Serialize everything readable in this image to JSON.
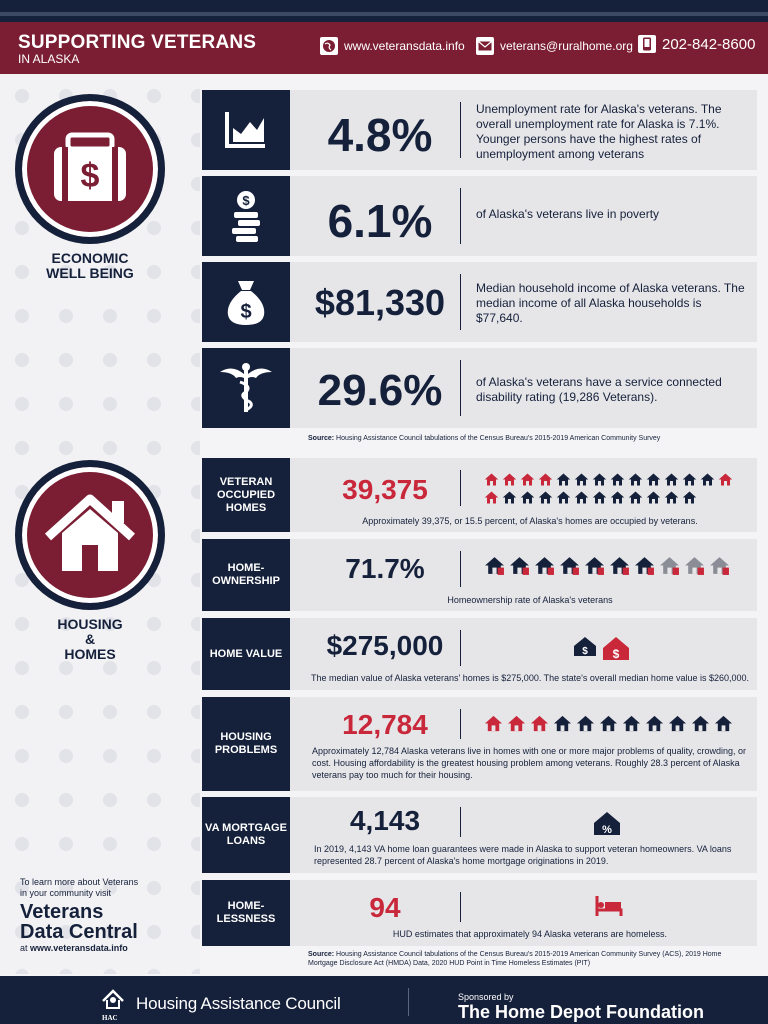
{
  "header": {
    "title": "SUPPORTING VETERANS",
    "subtitle": "IN ALASKA",
    "website": "www.veteransdata.info",
    "email": "veterans@ruralhome.org",
    "phone": "202-842-8600"
  },
  "economic": {
    "label_line1": "ECONOMIC",
    "label_line2": "WELL BEING",
    "stats": [
      {
        "value": "4.8%",
        "icon": "chart-icon",
        "desc": "Unemployment rate for Alaska's veterans. The overall unemployment rate for Alaska is 7.1%. Younger persons have the highest rates of unemployment among veterans"
      },
      {
        "value": "6.1%",
        "icon": "coins-icon",
        "desc": "of Alaska's veterans live in poverty"
      },
      {
        "value": "$81,330",
        "icon": "money-bag-icon",
        "desc": "Median household income of Alaska veterans. The median income of all Alaska households is $77,640."
      },
      {
        "value": "29.6%",
        "icon": "caduceus-icon",
        "desc": "of Alaska's veterans have a service connected disability rating (19,286 Veterans)."
      }
    ],
    "source_label": "Source:",
    "source_text": "Housing Assistance Council tabulations of the Census Bureau's 2015-2019 American Community Survey"
  },
  "housing": {
    "label_line1": "HOUSING",
    "label_line2": "&",
    "label_line3": "HOMES",
    "rows": [
      {
        "label": "VETERAN OCCUPIED HOMES",
        "value": "39,375",
        "color": "#c8283a",
        "desc": "Approximately 39,375, or 15.5 percent, of Alaska's homes are occupied by veterans."
      },
      {
        "label": "HOME-OWNERSHIP",
        "value": "71.7%",
        "color": "#15203a",
        "desc": "Homeownership rate of Alaska's veterans"
      },
      {
        "label": "HOME VALUE",
        "value": "$275,000",
        "color": "#15203a",
        "desc": "The median value of Alaska veterans' homes is $275,000. The state's overall median home value is $260,000."
      },
      {
        "label": "HOUSING PROBLEMS",
        "value": "12,784",
        "color": "#c8283a",
        "desc": "Approximately 12,784 Alaska veterans live in homes with one or more major problems of quality, crowding, or cost. Housing affordability is the greatest housing problem among veterans. Roughly 28.3 percent of Alaska veterans pay too much for their housing."
      },
      {
        "label": "VA MORTGAGE LOANS",
        "value": "4,143",
        "color": "#15203a",
        "desc": "In 2019, 4,143 VA home loan guarantees were made in Alaska to support veteran homeowners. VA loans represented 28.7 percent of Alaska's home mortgage originations in 2019."
      },
      {
        "label": "HOME-LESSNESS",
        "value": "94",
        "color": "#c8283a",
        "desc": "HUD estimates that approximately 94 Alaska veterans are homeless."
      }
    ],
    "source_label": "Source:",
    "source_text": "Housing Assistance Council tabulations of the Census Bureau's 2015-2019 American Community Survey (ACS), 2019 Home Mortgage Disclosure Act (HMDA) Data, 2020 HUD Point in Time Homeless Estimates (PIT)"
  },
  "learn_more": {
    "line1": "To learn more about Veterans",
    "line2": "in your community visit",
    "brand1": "Veterans",
    "brand2": "Data Central",
    "at": "at",
    "url": "www.veteransdata.info"
  },
  "footer": {
    "org": "Housing Assistance Council",
    "org_abbr": "HAC",
    "sponsored": "Sponsored by",
    "sponsor": "The Home Depot Foundation"
  }
}
